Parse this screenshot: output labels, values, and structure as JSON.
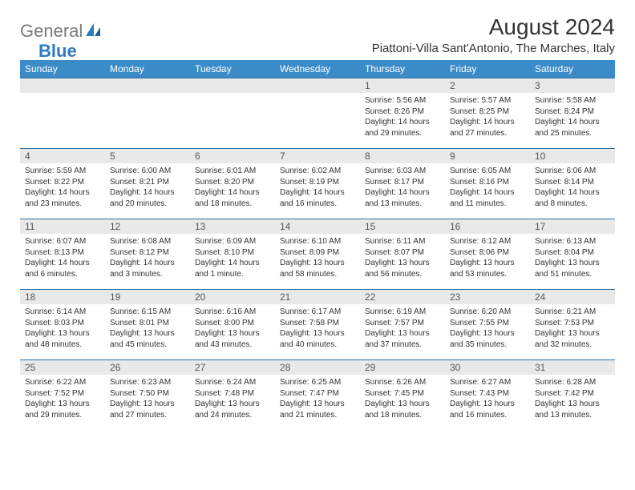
{
  "brand": {
    "text1": "General",
    "text2": "Blue"
  },
  "title": "August 2024",
  "location": "Piattoni-Villa Sant'Antonio, The Marches, Italy",
  "colors": {
    "header_bg": "#3b8bc8",
    "header_text": "#ffffff",
    "row_divider": "#2b6fa3",
    "daynum_bg": "#e9e9e9",
    "body_text": "#333333",
    "logo_gray": "#7a7a7a",
    "logo_blue": "#2f7bbf",
    "page_bg": "#ffffff"
  },
  "typography": {
    "title_fontsize": 28,
    "location_fontsize": 15,
    "header_fontsize": 12,
    "daynum_fontsize": 12,
    "cell_fontsize": 10
  },
  "weekdays": [
    "Sunday",
    "Monday",
    "Tuesday",
    "Wednesday",
    "Thursday",
    "Friday",
    "Saturday"
  ],
  "weeks": [
    [
      {
        "empty": true
      },
      {
        "empty": true
      },
      {
        "empty": true
      },
      {
        "empty": true
      },
      {
        "day": "1",
        "sunrise": "Sunrise: 5:56 AM",
        "sunset": "Sunset: 8:26 PM",
        "daylight": "Daylight: 14 hours and 29 minutes."
      },
      {
        "day": "2",
        "sunrise": "Sunrise: 5:57 AM",
        "sunset": "Sunset: 8:25 PM",
        "daylight": "Daylight: 14 hours and 27 minutes."
      },
      {
        "day": "3",
        "sunrise": "Sunrise: 5:58 AM",
        "sunset": "Sunset: 8:24 PM",
        "daylight": "Daylight: 14 hours and 25 minutes."
      }
    ],
    [
      {
        "day": "4",
        "sunrise": "Sunrise: 5:59 AM",
        "sunset": "Sunset: 8:22 PM",
        "daylight": "Daylight: 14 hours and 23 minutes."
      },
      {
        "day": "5",
        "sunrise": "Sunrise: 6:00 AM",
        "sunset": "Sunset: 8:21 PM",
        "daylight": "Daylight: 14 hours and 20 minutes."
      },
      {
        "day": "6",
        "sunrise": "Sunrise: 6:01 AM",
        "sunset": "Sunset: 8:20 PM",
        "daylight": "Daylight: 14 hours and 18 minutes."
      },
      {
        "day": "7",
        "sunrise": "Sunrise: 6:02 AM",
        "sunset": "Sunset: 8:19 PM",
        "daylight": "Daylight: 14 hours and 16 minutes."
      },
      {
        "day": "8",
        "sunrise": "Sunrise: 6:03 AM",
        "sunset": "Sunset: 8:17 PM",
        "daylight": "Daylight: 14 hours and 13 minutes."
      },
      {
        "day": "9",
        "sunrise": "Sunrise: 6:05 AM",
        "sunset": "Sunset: 8:16 PM",
        "daylight": "Daylight: 14 hours and 11 minutes."
      },
      {
        "day": "10",
        "sunrise": "Sunrise: 6:06 AM",
        "sunset": "Sunset: 8:14 PM",
        "daylight": "Daylight: 14 hours and 8 minutes."
      }
    ],
    [
      {
        "day": "11",
        "sunrise": "Sunrise: 6:07 AM",
        "sunset": "Sunset: 8:13 PM",
        "daylight": "Daylight: 14 hours and 6 minutes."
      },
      {
        "day": "12",
        "sunrise": "Sunrise: 6:08 AM",
        "sunset": "Sunset: 8:12 PM",
        "daylight": "Daylight: 14 hours and 3 minutes."
      },
      {
        "day": "13",
        "sunrise": "Sunrise: 6:09 AM",
        "sunset": "Sunset: 8:10 PM",
        "daylight": "Daylight: 14 hours and 1 minute."
      },
      {
        "day": "14",
        "sunrise": "Sunrise: 6:10 AM",
        "sunset": "Sunset: 8:09 PM",
        "daylight": "Daylight: 13 hours and 58 minutes."
      },
      {
        "day": "15",
        "sunrise": "Sunrise: 6:11 AM",
        "sunset": "Sunset: 8:07 PM",
        "daylight": "Daylight: 13 hours and 56 minutes."
      },
      {
        "day": "16",
        "sunrise": "Sunrise: 6:12 AM",
        "sunset": "Sunset: 8:06 PM",
        "daylight": "Daylight: 13 hours and 53 minutes."
      },
      {
        "day": "17",
        "sunrise": "Sunrise: 6:13 AM",
        "sunset": "Sunset: 8:04 PM",
        "daylight": "Daylight: 13 hours and 51 minutes."
      }
    ],
    [
      {
        "day": "18",
        "sunrise": "Sunrise: 6:14 AM",
        "sunset": "Sunset: 8:03 PM",
        "daylight": "Daylight: 13 hours and 48 minutes."
      },
      {
        "day": "19",
        "sunrise": "Sunrise: 6:15 AM",
        "sunset": "Sunset: 8:01 PM",
        "daylight": "Daylight: 13 hours and 45 minutes."
      },
      {
        "day": "20",
        "sunrise": "Sunrise: 6:16 AM",
        "sunset": "Sunset: 8:00 PM",
        "daylight": "Daylight: 13 hours and 43 minutes."
      },
      {
        "day": "21",
        "sunrise": "Sunrise: 6:17 AM",
        "sunset": "Sunset: 7:58 PM",
        "daylight": "Daylight: 13 hours and 40 minutes."
      },
      {
        "day": "22",
        "sunrise": "Sunrise: 6:19 AM",
        "sunset": "Sunset: 7:57 PM",
        "daylight": "Daylight: 13 hours and 37 minutes."
      },
      {
        "day": "23",
        "sunrise": "Sunrise: 6:20 AM",
        "sunset": "Sunset: 7:55 PM",
        "daylight": "Daylight: 13 hours and 35 minutes."
      },
      {
        "day": "24",
        "sunrise": "Sunrise: 6:21 AM",
        "sunset": "Sunset: 7:53 PM",
        "daylight": "Daylight: 13 hours and 32 minutes."
      }
    ],
    [
      {
        "day": "25",
        "sunrise": "Sunrise: 6:22 AM",
        "sunset": "Sunset: 7:52 PM",
        "daylight": "Daylight: 13 hours and 29 minutes."
      },
      {
        "day": "26",
        "sunrise": "Sunrise: 6:23 AM",
        "sunset": "Sunset: 7:50 PM",
        "daylight": "Daylight: 13 hours and 27 minutes."
      },
      {
        "day": "27",
        "sunrise": "Sunrise: 6:24 AM",
        "sunset": "Sunset: 7:48 PM",
        "daylight": "Daylight: 13 hours and 24 minutes."
      },
      {
        "day": "28",
        "sunrise": "Sunrise: 6:25 AM",
        "sunset": "Sunset: 7:47 PM",
        "daylight": "Daylight: 13 hours and 21 minutes."
      },
      {
        "day": "29",
        "sunrise": "Sunrise: 6:26 AM",
        "sunset": "Sunset: 7:45 PM",
        "daylight": "Daylight: 13 hours and 18 minutes."
      },
      {
        "day": "30",
        "sunrise": "Sunrise: 6:27 AM",
        "sunset": "Sunset: 7:43 PM",
        "daylight": "Daylight: 13 hours and 16 minutes."
      },
      {
        "day": "31",
        "sunrise": "Sunrise: 6:28 AM",
        "sunset": "Sunset: 7:42 PM",
        "daylight": "Daylight: 13 hours and 13 minutes."
      }
    ]
  ]
}
